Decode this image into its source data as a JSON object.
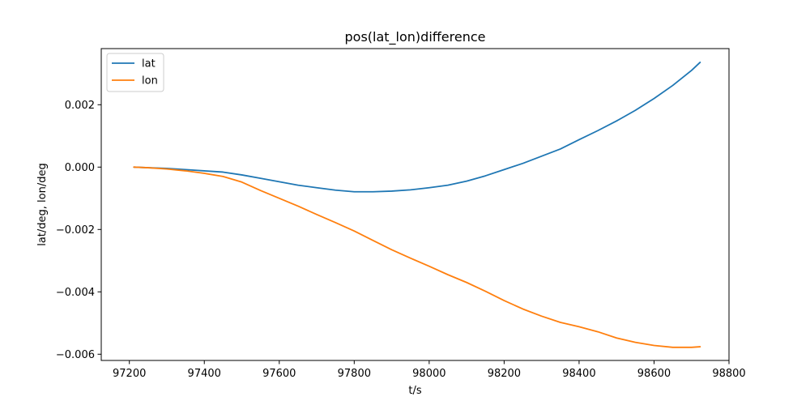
{
  "chart_data": {
    "type": "line",
    "title": "pos(lat_lon)difference",
    "xlabel": "t/s",
    "ylabel": "lat/deg, lon/deg",
    "xlim": [
      97125,
      98800
    ],
    "ylim": [
      -0.0062,
      0.0038
    ],
    "xticks": [
      97200,
      97400,
      97600,
      97800,
      98000,
      98200,
      98400,
      98600,
      98800
    ],
    "xtick_labels": [
      "97200",
      "97400",
      "97600",
      "97800",
      "98000",
      "98200",
      "98400",
      "98600",
      "98800"
    ],
    "yticks": [
      -0.006,
      -0.004,
      -0.002,
      0.0,
      0.002
    ],
    "ytick_labels": [
      "−0.006",
      "−0.004",
      "−0.002",
      "0.000",
      "0.002"
    ],
    "grid": false,
    "legend_position": "top-left",
    "series": [
      {
        "name": "lat",
        "color": "#1f77b4",
        "points": [
          [
            97212,
            0.0
          ],
          [
            97250,
            -2e-05
          ],
          [
            97300,
            -4e-05
          ],
          [
            97350,
            -8e-05
          ],
          [
            97400,
            -0.00012
          ],
          [
            97450,
            -0.00016
          ],
          [
            97500,
            -0.00025
          ],
          [
            97550,
            -0.00036
          ],
          [
            97600,
            -0.00047
          ],
          [
            97650,
            -0.00058
          ],
          [
            97700,
            -0.00066
          ],
          [
            97750,
            -0.00074
          ],
          [
            97800,
            -0.00079
          ],
          [
            97850,
            -0.00079
          ],
          [
            97900,
            -0.00077
          ],
          [
            97950,
            -0.00073
          ],
          [
            98000,
            -0.00066
          ],
          [
            98050,
            -0.00058
          ],
          [
            98100,
            -0.00045
          ],
          [
            98150,
            -0.00028
          ],
          [
            98200,
            -8e-05
          ],
          [
            98250,
            0.00012
          ],
          [
            98300,
            0.00035
          ],
          [
            98350,
            0.00058
          ],
          [
            98400,
            0.00088
          ],
          [
            98450,
            0.00117
          ],
          [
            98500,
            0.00148
          ],
          [
            98550,
            0.00182
          ],
          [
            98600,
            0.0022
          ],
          [
            98650,
            0.00262
          ],
          [
            98700,
            0.0031
          ],
          [
            98723,
            0.00336
          ]
        ]
      },
      {
        "name": "lon",
        "color": "#ff7f0e",
        "points": [
          [
            97212,
            0.0
          ],
          [
            97250,
            -2e-05
          ],
          [
            97300,
            -6e-05
          ],
          [
            97350,
            -0.00012
          ],
          [
            97400,
            -0.0002
          ],
          [
            97450,
            -0.0003
          ],
          [
            97500,
            -0.00048
          ],
          [
            97550,
            -0.00075
          ],
          [
            97600,
            -0.001
          ],
          [
            97650,
            -0.00125
          ],
          [
            97700,
            -0.00152
          ],
          [
            97750,
            -0.00178
          ],
          [
            97800,
            -0.00205
          ],
          [
            97850,
            -0.00235
          ],
          [
            97900,
            -0.00265
          ],
          [
            97950,
            -0.00292
          ],
          [
            98000,
            -0.00318
          ],
          [
            98050,
            -0.00345
          ],
          [
            98100,
            -0.0037
          ],
          [
            98150,
            -0.00398
          ],
          [
            98200,
            -0.00428
          ],
          [
            98250,
            -0.00455
          ],
          [
            98300,
            -0.00478
          ],
          [
            98350,
            -0.00498
          ],
          [
            98400,
            -0.00512
          ],
          [
            98450,
            -0.00528
          ],
          [
            98500,
            -0.00548
          ],
          [
            98550,
            -0.00562
          ],
          [
            98600,
            -0.00572
          ],
          [
            98650,
            -0.00578
          ],
          [
            98700,
            -0.00578
          ],
          [
            98723,
            -0.00576
          ]
        ]
      }
    ]
  }
}
